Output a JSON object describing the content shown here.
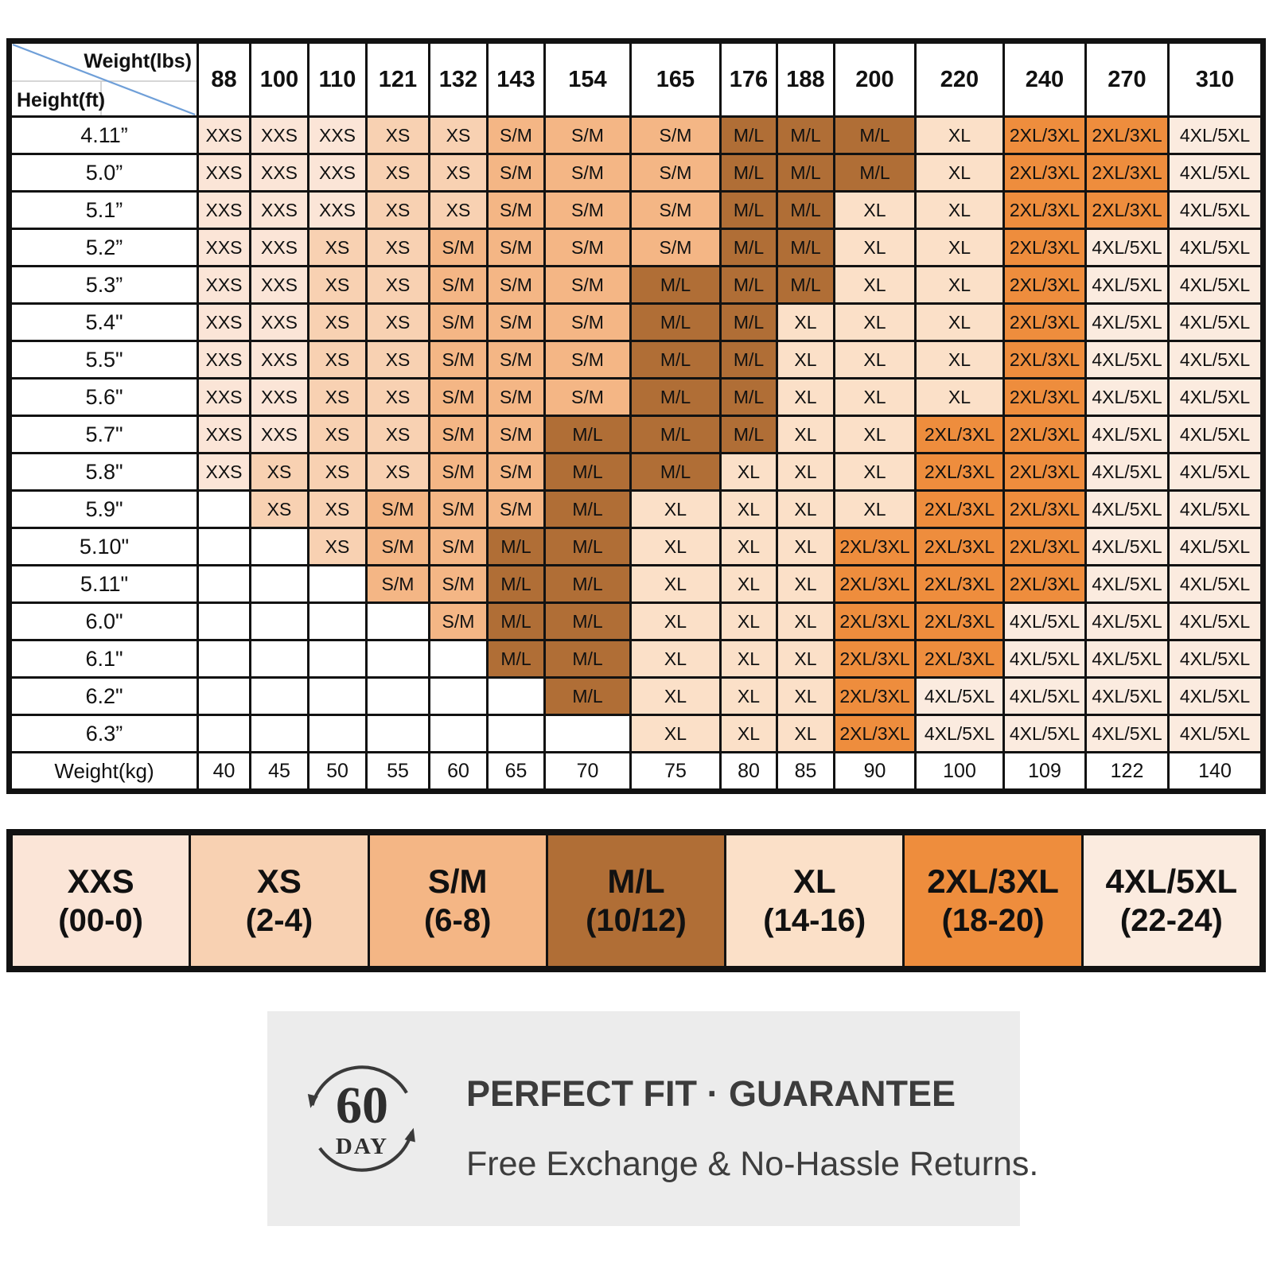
{
  "chart_data": {
    "type": "table",
    "corner": {
      "top_label": "Weight(lbs)",
      "left_label": "Height(ft)"
    },
    "weight_lbs": [
      "88",
      "100",
      "110",
      "121",
      "132",
      "143",
      "154",
      "165",
      "176",
      "188",
      "200",
      "220",
      "240",
      "270",
      "310"
    ],
    "rows": [
      {
        "height": "4.11”",
        "sizes": [
          "XXS",
          "XXS",
          "XXS",
          "XS",
          "XS",
          "S/M",
          "S/M",
          "S/M",
          "M/L",
          "M/L",
          "M/L",
          "XL",
          "2XL/3XL",
          "2XL/3XL",
          "4XL/5XL"
        ]
      },
      {
        "height": "5.0”",
        "sizes": [
          "XXS",
          "XXS",
          "XXS",
          "XS",
          "XS",
          "S/M",
          "S/M",
          "S/M",
          "M/L",
          "M/L",
          "M/L",
          "XL",
          "2XL/3XL",
          "2XL/3XL",
          "4XL/5XL"
        ]
      },
      {
        "height": "5.1”",
        "sizes": [
          "XXS",
          "XXS",
          "XXS",
          "XS",
          "XS",
          "S/M",
          "S/M",
          "S/M",
          "M/L",
          "M/L",
          "XL",
          "XL",
          "2XL/3XL",
          "2XL/3XL",
          "4XL/5XL"
        ]
      },
      {
        "height": "5.2”",
        "sizes": [
          "XXS",
          "XXS",
          "XS",
          "XS",
          "S/M",
          "S/M",
          "S/M",
          "S/M",
          "M/L",
          "M/L",
          "XL",
          "XL",
          "2XL/3XL",
          "4XL/5XL",
          "4XL/5XL"
        ]
      },
      {
        "height": "5.3”",
        "sizes": [
          "XXS",
          "XXS",
          "XS",
          "XS",
          "S/M",
          "S/M",
          "S/M",
          "M/L",
          "M/L",
          "M/L",
          "XL",
          "XL",
          "2XL/3XL",
          "4XL/5XL",
          "4XL/5XL"
        ]
      },
      {
        "height": "5.4\"",
        "sizes": [
          "XXS",
          "XXS",
          "XS",
          "XS",
          "S/M",
          "S/M",
          "S/M",
          "M/L",
          "M/L",
          "XL",
          "XL",
          "XL",
          "2XL/3XL",
          "4XL/5XL",
          "4XL/5XL"
        ]
      },
      {
        "height": "5.5\"",
        "sizes": [
          "XXS",
          "XXS",
          "XS",
          "XS",
          "S/M",
          "S/M",
          "S/M",
          "M/L",
          "M/L",
          "XL",
          "XL",
          "XL",
          "2XL/3XL",
          "4XL/5XL",
          "4XL/5XL"
        ]
      },
      {
        "height": "5.6\"",
        "sizes": [
          "XXS",
          "XXS",
          "XS",
          "XS",
          "S/M",
          "S/M",
          "S/M",
          "M/L",
          "M/L",
          "XL",
          "XL",
          "XL",
          "2XL/3XL",
          "4XL/5XL",
          "4XL/5XL"
        ]
      },
      {
        "height": "5.7\"",
        "sizes": [
          "XXS",
          "XXS",
          "XS",
          "XS",
          "S/M",
          "S/M",
          "M/L",
          "M/L",
          "M/L",
          "XL",
          "XL",
          "2XL/3XL",
          "2XL/3XL",
          "4XL/5XL",
          "4XL/5XL"
        ]
      },
      {
        "height": "5.8\"",
        "sizes": [
          "XXS",
          "XS",
          "XS",
          "XS",
          "S/M",
          "S/M",
          "M/L",
          "M/L",
          "XL",
          "XL",
          "XL",
          "2XL/3XL",
          "2XL/3XL",
          "4XL/5XL",
          "4XL/5XL"
        ]
      },
      {
        "height": "5.9\"",
        "sizes": [
          "",
          "XS",
          "XS",
          "S/M",
          "S/M",
          "S/M",
          "M/L",
          "XL",
          "XL",
          "XL",
          "XL",
          "2XL/3XL",
          "2XL/3XL",
          "4XL/5XL",
          "4XL/5XL"
        ]
      },
      {
        "height": "5.10\"",
        "sizes": [
          "",
          "",
          "XS",
          "S/M",
          "S/M",
          "M/L",
          "M/L",
          "XL",
          "XL",
          "XL",
          "2XL/3XL",
          "2XL/3XL",
          "2XL/3XL",
          "4XL/5XL",
          "4XL/5XL"
        ]
      },
      {
        "height": "5.11\"",
        "sizes": [
          "",
          "",
          "",
          "S/M",
          "S/M",
          "M/L",
          "M/L",
          "XL",
          "XL",
          "XL",
          "2XL/3XL",
          "2XL/3XL",
          "2XL/3XL",
          "4XL/5XL",
          "4XL/5XL"
        ]
      },
      {
        "height": "6.0\"",
        "sizes": [
          "",
          "",
          "",
          "",
          "S/M",
          "M/L",
          "M/L",
          "XL",
          "XL",
          "XL",
          "2XL/3XL",
          "2XL/3XL",
          "4XL/5XL",
          "4XL/5XL",
          "4XL/5XL"
        ]
      },
      {
        "height": "6.1\"",
        "sizes": [
          "",
          "",
          "",
          "",
          "",
          "M/L",
          "M/L",
          "XL",
          "XL",
          "XL",
          "2XL/3XL",
          "2XL/3XL",
          "4XL/5XL",
          "4XL/5XL",
          "4XL/5XL"
        ]
      },
      {
        "height": "6.2\"",
        "sizes": [
          "",
          "",
          "",
          "",
          "",
          "",
          "M/L",
          "XL",
          "XL",
          "XL",
          "2XL/3XL",
          "4XL/5XL",
          "4XL/5XL",
          "4XL/5XL",
          "4XL/5XL"
        ]
      },
      {
        "height": "6.3”",
        "sizes": [
          "",
          "",
          "",
          "",
          "",
          "",
          "",
          "XL",
          "XL",
          "XL",
          "2XL/3XL",
          "4XL/5XL",
          "4XL/5XL",
          "4XL/5XL",
          "4XL/5XL"
        ]
      }
    ],
    "footer": {
      "label": "Weight(kg)",
      "values": [
        "40",
        "45",
        "50",
        "55",
        "60",
        "65",
        "70",
        "75",
        "80",
        "85",
        "90",
        "100",
        "109",
        "122",
        "140"
      ]
    },
    "legend": [
      {
        "size": "XXS",
        "range": "(00-0)",
        "color": "#fbe5d7"
      },
      {
        "size": "XS",
        "range": "(2-4)",
        "color": "#f8d1b2"
      },
      {
        "size": "S/M",
        "range": "(6-8)",
        "color": "#f4b685"
      },
      {
        "size": "M/L",
        "range": "(10/12)",
        "color": "#b06e36"
      },
      {
        "size": "XL",
        "range": "(14-16)",
        "color": "#fbe0c8"
      },
      {
        "size": "2XL/3XL",
        "range": "(18-20)",
        "color": "#ee8d3d"
      },
      {
        "size": "4XL/5XL",
        "range": "(22-24)",
        "color": "#fbebdf"
      }
    ]
  },
  "size_colors": {
    "XXS": "#fbe5d7",
    "XS": "#f8d1b2",
    "S/M": "#f4b685",
    "M/L": "#b06e36",
    "XL": "#fbe0c8",
    "2XL/3XL": "#ee8d3d",
    "4XL/5XL": "#fbebdf",
    "": "#ffffff"
  },
  "guarantee": {
    "badge_value": "60",
    "badge_unit": "DAY",
    "title": "PERFECT FIT · GUARANTEE",
    "subtitle": "Free Exchange & No-Hassle Returns."
  }
}
